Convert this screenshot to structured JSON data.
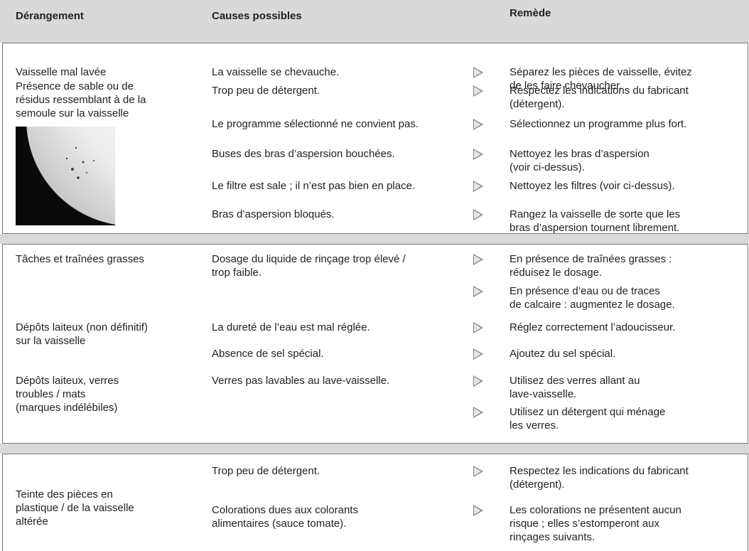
{
  "header": {
    "col1": "Dérangement",
    "col2": "Causes possibles",
    "col3": "Remède"
  },
  "sections": [
    {
      "problems": [
        "Vaisselle mal lavée",
        "Présence de sable ou de\nrésidus ressemblant à de la\nsemoule sur la vaisselle"
      ],
      "causes": [
        "La vaisselle se chevauche.",
        "Trop peu de détergent.",
        "Le programme sélectionné ne convient pas.",
        "Buses des bras d’aspersion bouchées.",
        "Le filtre est sale ; il n’est pas bien en place.",
        "Bras d’aspersion bloqués."
      ],
      "remedies": [
        "Séparez les pièces de vaisselle, évitez\nde les faire chevaucher.",
        "Respectez les indications du fabricant\n(détergent).",
        "Sélectionnez un programme plus fort.",
        "Nettoyez les bras d’aspersion\n(voir ci-dessus).",
        "Nettoyez les filtres (voir ci-dessus).",
        "Rangez la vaisselle de sorte que les\nbras d’aspersion tournent librement."
      ]
    },
    {
      "problems": [
        "Tâches et traînées grasses",
        "Dépôts laiteux (non définitif)\nsur la vaisselle",
        "Dépôts laiteux, verres\ntroubles / mats\n(marques indélébiles)"
      ],
      "causes": [
        "Dosage du liquide de rinçage trop élevé /\ntrop faible.",
        "La dureté de l’eau est mal réglée.",
        "Absence de sel spécial.",
        "Verres pas lavables au lave-vaisselle."
      ],
      "remedies": [
        "En présence de traînées grasses :\nréduisez le dosage.",
        "En présence d’eau ou de traces\nde calcaire : augmentez le dosage.",
        "Réglez correctement l’adoucisseur.",
        "Ajoutez du sel spécial.",
        "Utilisez des verres allant au\nlave-vaisselle.",
        "Utilisez un détergent qui ménage\nles verres."
      ]
    },
    {
      "problems": [
        "Teinte des pièces en\nplastique / de la vaisselle\naltérée"
      ],
      "causes": [
        "Trop peu de détergent.",
        "Colorations dues aux colorants\nalimentaires (sauce tomate)."
      ],
      "remedies": [
        "Respectez les indications du fabricant\n(détergent).",
        "Les colorations ne présentent aucun\nrisque ; elles s’estomperont aux\nrinçages suivants."
      ]
    }
  ]
}
